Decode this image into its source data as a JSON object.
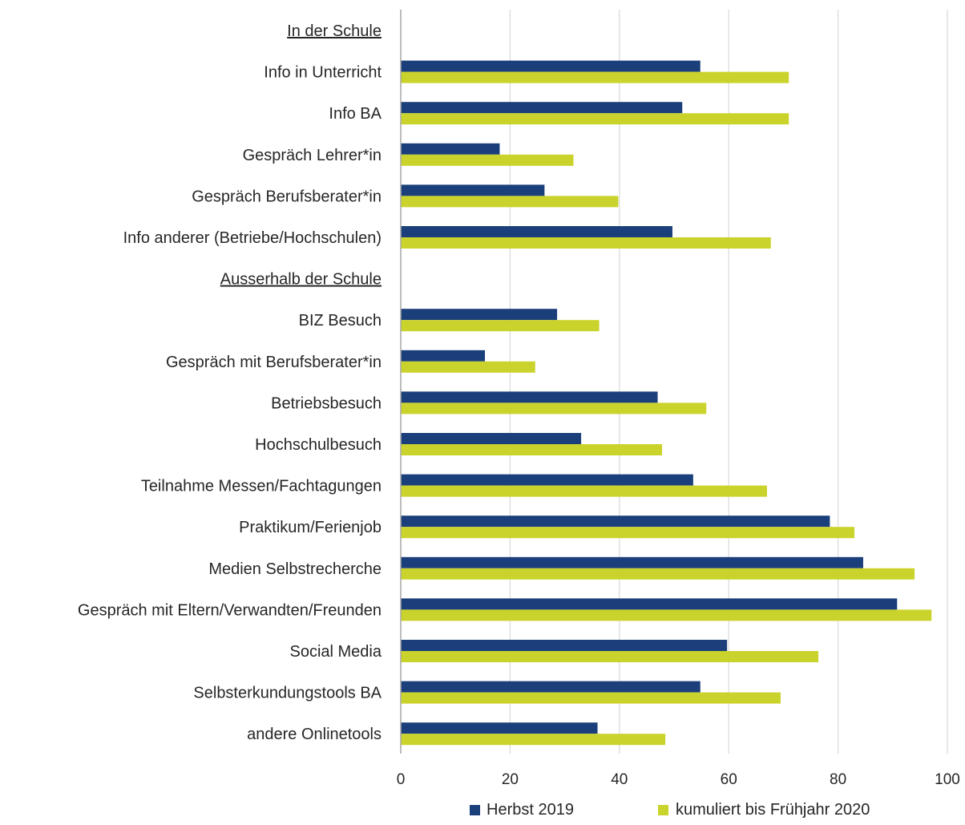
{
  "chart_data": {
    "type": "bar",
    "orientation": "horizontal",
    "title": "",
    "xlabel": "",
    "ylabel": "",
    "xlim": [
      0,
      100
    ],
    "x_ticks": [
      0,
      20,
      40,
      60,
      80,
      100
    ],
    "grid": "vertical",
    "legend_position": "bottom",
    "colors": {
      "Herbst 2019": "#1b3f7a",
      "kumuliert bis Frühjahr 2020": "#cad32b",
      "grid": "#d9d9d9",
      "axis": "#a6a6a6",
      "text": "#262626"
    },
    "categories": [
      {
        "label": "In der Schule",
        "is_heading": true
      },
      {
        "label": "Info in Unterricht",
        "is_heading": false
      },
      {
        "label": "Info BA",
        "is_heading": false
      },
      {
        "label": "Gespräch Lehrer*in",
        "is_heading": false
      },
      {
        "label": "Gespräch Berufsberater*in",
        "is_heading": false
      },
      {
        "label": "Info anderer (Betriebe/Hochschulen)",
        "is_heading": false
      },
      {
        "label": "Ausserhalb der Schule",
        "is_heading": true
      },
      {
        "label": "BIZ Besuch",
        "is_heading": false
      },
      {
        "label": "Gespräch mit Berufsberater*in",
        "is_heading": false
      },
      {
        "label": "Betriebsbesuch",
        "is_heading": false
      },
      {
        "label": "Hochschulbesuch",
        "is_heading": false
      },
      {
        "label": "Teilnahme Messen/Fachtagungen",
        "is_heading": false
      },
      {
        "label": "Praktikum/Ferienjob",
        "is_heading": false
      },
      {
        "label": "Medien Selbstrecherche",
        "is_heading": false
      },
      {
        "label": "Gespräch mit Eltern/Verwandten/Freunden",
        "is_heading": false
      },
      {
        "label": "Social Media",
        "is_heading": false
      },
      {
        "label": "Selbsterkundungstools BA",
        "is_heading": false
      },
      {
        "label": "andere Onlinetools",
        "is_heading": false
      }
    ],
    "series": [
      {
        "name": "Herbst 2019",
        "values": [
          null,
          54.8,
          51.5,
          18.1,
          26.3,
          49.7,
          null,
          28.6,
          15.4,
          47.0,
          33.0,
          53.5,
          78.5,
          84.6,
          90.8,
          59.7,
          54.8,
          36.0
        ]
      },
      {
        "name": "kumuliert bis Frühjahr 2020",
        "values": [
          null,
          71.0,
          71.0,
          31.6,
          39.8,
          67.7,
          null,
          36.3,
          24.6,
          55.9,
          47.8,
          67.0,
          83.0,
          94.0,
          97.1,
          76.4,
          69.5,
          48.4
        ]
      }
    ]
  }
}
